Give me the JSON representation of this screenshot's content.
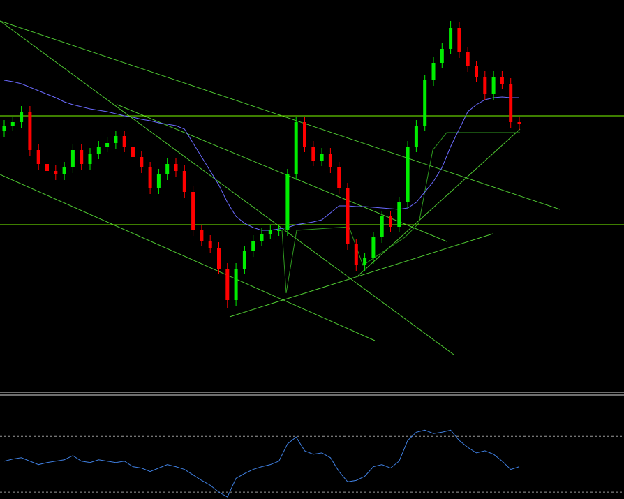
{
  "chart_data": [
    {
      "type": "candlestick",
      "ylim": [
        0,
        560
      ],
      "up_color": "#00ee00",
      "down_color": "#ff0000",
      "open": [
        372,
        380,
        385,
        400,
        345,
        325,
        315,
        310,
        320,
        345,
        325,
        340,
        350,
        355,
        365,
        350,
        335,
        320,
        290,
        310,
        325,
        315,
        285,
        230,
        215,
        205,
        175,
        130,
        175,
        200,
        215,
        225,
        230,
        230,
        310,
        385,
        350,
        330,
        340,
        320,
        290,
        210,
        180,
        190,
        220,
        250,
        235,
        270,
        350,
        380,
        445,
        470,
        490,
        520,
        485,
        465,
        450,
        425,
        450,
        440,
        385
      ],
      "high": [
        388,
        393,
        408,
        408,
        353,
        333,
        323,
        328,
        353,
        353,
        348,
        358,
        363,
        373,
        373,
        358,
        343,
        328,
        318,
        333,
        333,
        323,
        293,
        238,
        223,
        213,
        183,
        183,
        208,
        223,
        233,
        238,
        238,
        318,
        393,
        393,
        358,
        348,
        348,
        328,
        298,
        218,
        198,
        228,
        258,
        258,
        278,
        358,
        388,
        453,
        478,
        498,
        530,
        528,
        493,
        473,
        458,
        458,
        458,
        448,
        393
      ],
      "low": [
        364,
        372,
        377,
        337,
        317,
        307,
        302,
        302,
        312,
        317,
        317,
        332,
        342,
        347,
        342,
        327,
        312,
        282,
        282,
        302,
        307,
        277,
        222,
        207,
        197,
        167,
        118,
        122,
        167,
        192,
        207,
        217,
        222,
        222,
        302,
        342,
        322,
        322,
        312,
        282,
        202,
        172,
        172,
        182,
        212,
        227,
        227,
        262,
        342,
        372,
        437,
        462,
        482,
        477,
        457,
        442,
        417,
        417,
        432,
        377,
        374
      ],
      "close": [
        380,
        385,
        400,
        345,
        325,
        315,
        310,
        320,
        345,
        325,
        340,
        350,
        355,
        365,
        350,
        335,
        320,
        290,
        310,
        325,
        315,
        285,
        230,
        215,
        205,
        175,
        130,
        175,
        200,
        215,
        225,
        230,
        230,
        310,
        385,
        350,
        330,
        340,
        320,
        290,
        210,
        180,
        190,
        220,
        250,
        235,
        270,
        350,
        380,
        445,
        470,
        490,
        520,
        485,
        465,
        450,
        425,
        450,
        440,
        385,
        382
      ],
      "ma": {
        "color": "#6a6aff",
        "values": [
          445,
          443,
          440,
          435,
          430,
          425,
          420,
          414,
          410,
          407,
          404,
          402,
          400,
          397,
          394,
          392,
          389,
          387,
          384,
          382,
          380,
          375,
          355,
          335,
          315,
          295,
          270,
          250,
          240,
          234,
          230,
          230,
          232,
          234,
          238,
          240,
          242,
          245,
          255,
          265,
          265,
          264,
          264,
          263,
          262,
          261,
          260,
          262,
          270,
          285,
          300,
          320,
          350,
          375,
          400,
          410,
          417,
          420,
          421,
          420,
          420
        ]
      },
      "hlines": {
        "color": "#7cfc00",
        "values": [
          394,
          238
        ]
      }
    },
    {
      "type": "line",
      "ylim": [
        0,
        150
      ],
      "color": "#3f7fe0",
      "levels": {
        "color": "#9a9a9a",
        "values": [
          91,
          10
        ]
      },
      "values": [
        55,
        58,
        60,
        55,
        50,
        53,
        55,
        57,
        63,
        55,
        53,
        57,
        55,
        53,
        55,
        47,
        45,
        40,
        45,
        50,
        47,
        43,
        35,
        27,
        20,
        10,
        3,
        30,
        37,
        43,
        47,
        50,
        55,
        80,
        90,
        70,
        65,
        67,
        60,
        40,
        25,
        27,
        33,
        47,
        50,
        45,
        55,
        85,
        97,
        100,
        95,
        97,
        100,
        85,
        75,
        67,
        70,
        65,
        55,
        43,
        47
      ]
    }
  ]
}
